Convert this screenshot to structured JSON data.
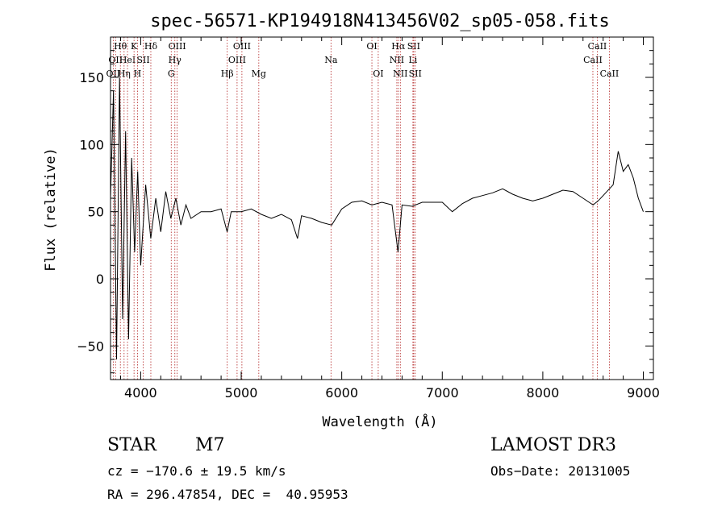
{
  "chart_data": {
    "type": "line",
    "title": "spec-56571-KP194918N413456V02_sp05-058.fits",
    "xlabel": "Wavelength (Å)",
    "ylabel": "Flux (relative)",
    "xlim": [
      3700,
      9100
    ],
    "ylim": [
      -75,
      180
    ],
    "xticks": [
      4000,
      5000,
      6000,
      7000,
      8000,
      9000
    ],
    "yticks": [
      -50,
      0,
      50,
      100,
      150
    ],
    "grid": false,
    "line_color": "#000000",
    "marker_color": "#b22222",
    "series": [
      {
        "x": [
          3700,
          3730,
          3760,
          3790,
          3820,
          3850,
          3880,
          3910,
          3940,
          3970,
          4000,
          4050,
          4100,
          4150,
          4200,
          4250,
          4300,
          4350,
          4400,
          4450,
          4500,
          4600,
          4700,
          4800,
          4860,
          4900,
          5000,
          5100,
          5200,
          5300,
          5400,
          5500,
          5560,
          5600,
          5700,
          5800,
          5900,
          6000,
          6100,
          6200,
          6300,
          6400,
          6500,
          6560,
          6600,
          6700,
          6800,
          6900,
          7000,
          7100,
          7200,
          7300,
          7400,
          7500,
          7600,
          7700,
          7800,
          7900,
          8000,
          8100,
          8200,
          8300,
          8400,
          8500,
          8550,
          8600,
          8700,
          8750,
          8800,
          8850,
          8900,
          8950,
          9000
        ],
        "y": [
          60,
          140,
          -60,
          150,
          -30,
          110,
          -45,
          90,
          20,
          80,
          10,
          70,
          30,
          60,
          35,
          65,
          45,
          60,
          40,
          55,
          45,
          50,
          50,
          52,
          35,
          50,
          50,
          52,
          48,
          45,
          48,
          44,
          30,
          47,
          45,
          42,
          40,
          52,
          57,
          58,
          55,
          57,
          55,
          20,
          55,
          54,
          57,
          57,
          57,
          50,
          56,
          60,
          62,
          64,
          67,
          63,
          60,
          58,
          60,
          63,
          66,
          65,
          60,
          55,
          58,
          62,
          70,
          95,
          80,
          85,
          75,
          60,
          50
        ]
      }
    ],
    "lines": [
      {
        "wl": 3727,
        "label": "OII",
        "row": 3
      },
      {
        "wl": 3750,
        "label": "OII",
        "row": 2
      },
      {
        "wl": 3798,
        "label": "Hθ",
        "row": 1
      },
      {
        "wl": 3835,
        "label": "Hη",
        "row": 3
      },
      {
        "wl": 3869,
        "label": "HeI",
        "row": 2
      },
      {
        "wl": 3934,
        "label": "K",
        "row": 1
      },
      {
        "wl": 3968,
        "label": "H",
        "row": 3
      },
      {
        "wl": 4026,
        "label": "SII",
        "row": 2
      },
      {
        "wl": 4101,
        "label": "Hδ",
        "row": 1
      },
      {
        "wl": 4304,
        "label": "G",
        "row": 3
      },
      {
        "wl": 4340,
        "label": "Hγ",
        "row": 2
      },
      {
        "wl": 4363,
        "label": "OIII",
        "row": 1
      },
      {
        "wl": 4861,
        "label": "Hβ",
        "row": 3
      },
      {
        "wl": 4959,
        "label": "OIII",
        "row": 2
      },
      {
        "wl": 5007,
        "label": "OIII",
        "row": 1
      },
      {
        "wl": 5175,
        "label": "Mg",
        "row": 3
      },
      {
        "wl": 5893,
        "label": "Na",
        "row": 2
      },
      {
        "wl": 6300,
        "label": "OI",
        "row": 1
      },
      {
        "wl": 6363,
        "label": "OI",
        "row": 3
      },
      {
        "wl": 6548,
        "label": "NII",
        "row": 2
      },
      {
        "wl": 6563,
        "label": "Hα",
        "row": 1
      },
      {
        "wl": 6583,
        "label": "NII",
        "row": 3
      },
      {
        "wl": 6708,
        "label": "Li",
        "row": 2
      },
      {
        "wl": 6716,
        "label": "SII",
        "row": 1
      },
      {
        "wl": 6731,
        "label": "SII",
        "row": 3
      },
      {
        "wl": 8498,
        "label": "CaII",
        "row": 2
      },
      {
        "wl": 8542,
        "label": "CaII",
        "row": 1
      },
      {
        "wl": 8662,
        "label": "CaII",
        "row": 3
      }
    ]
  },
  "info": {
    "class": "STAR",
    "subclass": "M7",
    "survey": "LAMOST DR3",
    "cz": "cz = −170.6 ± 19.5 km/s",
    "obsdate": "Obs−Date: 20131005",
    "radec": "RA = 296.47854, DEC =  40.95953"
  }
}
